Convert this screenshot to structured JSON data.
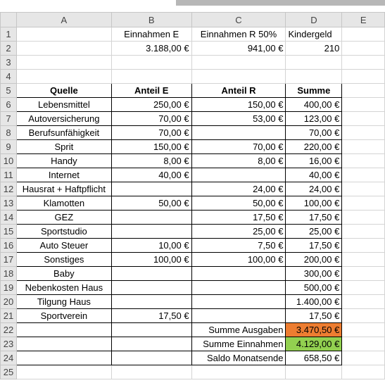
{
  "columns": [
    "A",
    "B",
    "C",
    "D",
    "E"
  ],
  "row_numbers": [
    "1",
    "2",
    "3",
    "4",
    "5",
    "6",
    "7",
    "8",
    "9",
    "10",
    "11",
    "12",
    "13",
    "14",
    "15",
    "16",
    "17",
    "18",
    "19",
    "20",
    "21",
    "22",
    "23",
    "24",
    "25"
  ],
  "income": {
    "headers": [
      "Einnahmen E",
      "Einnahmen R 50%",
      "Kindergeld"
    ],
    "values": [
      "3.188,00 €",
      "941,00 €",
      "210"
    ]
  },
  "table": {
    "headers": [
      "Quelle",
      "Anteil E",
      "Anteil R",
      "Summe"
    ],
    "rows": [
      [
        "Lebensmittel",
        "250,00 €",
        "150,00 €",
        "400,00 €"
      ],
      [
        "Autoversicherung",
        "70,00 €",
        "53,00 €",
        "123,00 €"
      ],
      [
        "Berufsunfähigkeit",
        "70,00 €",
        "",
        "70,00 €"
      ],
      [
        "Sprit",
        "150,00 €",
        "70,00 €",
        "220,00 €"
      ],
      [
        "Handy",
        "8,00 €",
        "8,00 €",
        "16,00 €"
      ],
      [
        "Internet",
        "40,00 €",
        "",
        "40,00 €"
      ],
      [
        "Hausrat + Haftpflicht",
        "",
        "24,00 €",
        "24,00 €"
      ],
      [
        "Klamotten",
        "50,00 €",
        "50,00 €",
        "100,00 €"
      ],
      [
        "GEZ",
        "",
        "17,50 €",
        "17,50 €"
      ],
      [
        "Sportstudio",
        "",
        "25,00 €",
        "25,00 €"
      ],
      [
        "Auto Steuer",
        "10,00 €",
        "7,50 €",
        "17,50 €"
      ],
      [
        "Sonstiges",
        "100,00 €",
        "100,00 €",
        "200,00 €"
      ],
      [
        "Baby",
        "",
        "",
        "300,00 €"
      ],
      [
        "Nebenkosten Haus",
        "",
        "",
        "500,00 €"
      ],
      [
        "Tilgung Haus",
        "",
        "",
        "1.400,00 €"
      ],
      [
        "Sportverein",
        "17,50 €",
        "",
        "17,50 €"
      ]
    ]
  },
  "summary": [
    {
      "label": "Summe Ausgaben",
      "value": "3.470,50 €",
      "color": "#ed7d31"
    },
    {
      "label": "Summe Einnahmen",
      "value": "4.129,00 €",
      "color": "#92d050"
    },
    {
      "label": "Saldo Monatsende",
      "value": "658,50 €",
      "color": "#ffffff"
    }
  ]
}
